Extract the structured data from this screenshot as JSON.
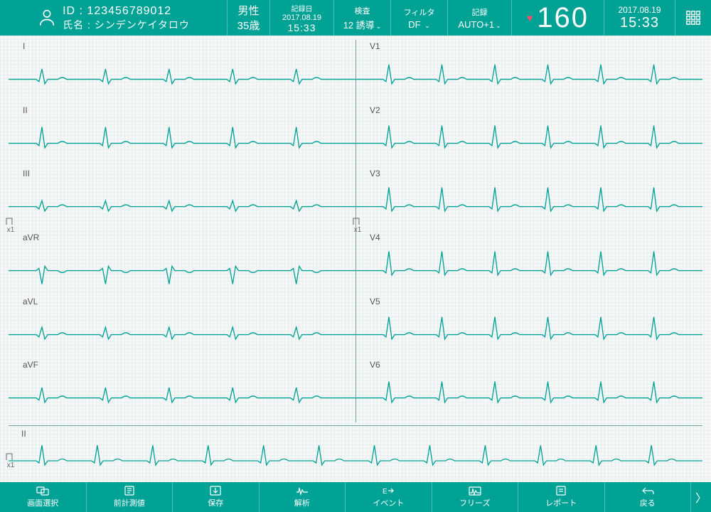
{
  "colors": {
    "primary": "#00a296",
    "primary_dark": "#009488",
    "trace": "#00a296",
    "divider": "#6aa39e",
    "heart": "#ff4d6a",
    "grid_line": "#e0ebe9"
  },
  "header": {
    "id_label": "ID :",
    "id_value": "123456789012",
    "name_label": "氏名 :",
    "name_value": "シンデンケイタロウ",
    "sex": "男性",
    "age": "35歳",
    "rec_date_label": "記録日",
    "rec_date": "2017.08.19",
    "rec_time": "15:33",
    "exam_label": "検査",
    "exam_value": "12 誘導",
    "filter_label": "フィルタ",
    "filter_value": "DF",
    "record_label": "記録",
    "record_value": "AUTO+1",
    "hr_value": "160",
    "clock_date": "2017.08.19",
    "clock_time": "15:33"
  },
  "ecg": {
    "scale_label_left": "x1",
    "scale_label_right": "x1",
    "scale_label_rhythm": "x1",
    "rhythm_lead": "II",
    "leads_left": [
      {
        "name": "I",
        "amp": 14,
        "invert": false,
        "beats": 5
      },
      {
        "name": "II",
        "amp": 22,
        "invert": false,
        "beats": 5
      },
      {
        "name": "III",
        "amp": 8,
        "invert": false,
        "beats": 5
      },
      {
        "name": "aVR",
        "amp": 18,
        "invert": true,
        "beats": 5
      },
      {
        "name": "aVL",
        "amp": 10,
        "invert": false,
        "beats": 5
      },
      {
        "name": "aVF",
        "amp": 14,
        "invert": false,
        "beats": 5
      }
    ],
    "leads_right": [
      {
        "name": "V1",
        "amp": 20,
        "invert": false,
        "beats": 6
      },
      {
        "name": "V2",
        "amp": 24,
        "invert": false,
        "beats": 6
      },
      {
        "name": "V3",
        "amp": 26,
        "invert": false,
        "beats": 6
      },
      {
        "name": "V4",
        "amp": 26,
        "invert": false,
        "beats": 6
      },
      {
        "name": "V5",
        "amp": 24,
        "invert": false,
        "beats": 6
      },
      {
        "name": "V6",
        "amp": 22,
        "invert": false,
        "beats": 6
      }
    ],
    "rhythm": {
      "amp": 22,
      "invert": false,
      "beats": 12
    },
    "trace_width": 1.3
  },
  "footer": {
    "buttons": [
      {
        "id": "screen-select",
        "label": "画面選択",
        "icon": "monitors"
      },
      {
        "id": "prev-measure",
        "label": "前計測値",
        "icon": "doc-lines"
      },
      {
        "id": "save",
        "label": "保存",
        "icon": "download"
      },
      {
        "id": "analysis",
        "label": "解析",
        "icon": "wave"
      },
      {
        "id": "event",
        "label": "イベント",
        "icon": "e-arrow"
      },
      {
        "id": "freeze",
        "label": "フリーズ",
        "icon": "freeze"
      },
      {
        "id": "report",
        "label": "レポート",
        "icon": "report"
      },
      {
        "id": "back",
        "label": "戻る",
        "icon": "return"
      }
    ],
    "next_glyph": "〉"
  }
}
